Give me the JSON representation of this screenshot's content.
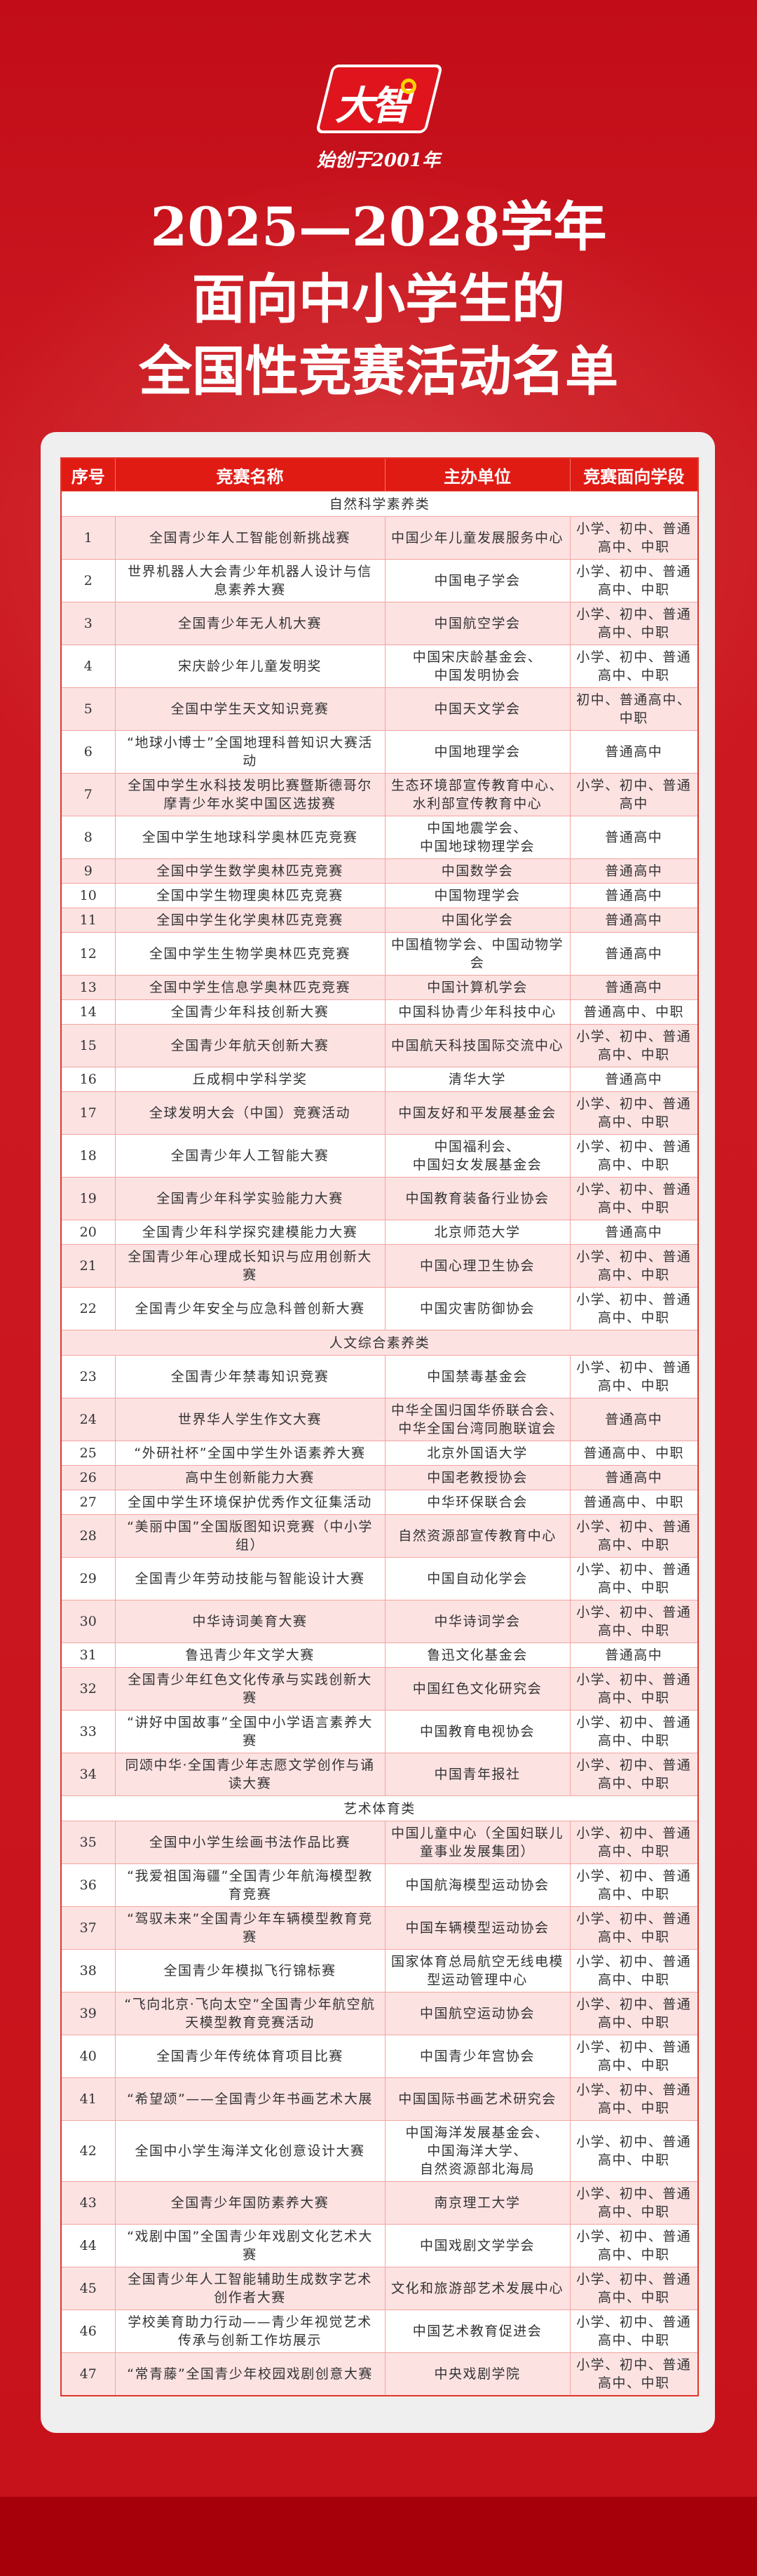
{
  "brand": {
    "logo_text": "大智",
    "slogan": "始创于2001年"
  },
  "title": {
    "line1": "2025—2028学年",
    "line2": "面向中小学生的",
    "line3": "全国性竞赛活动名单"
  },
  "colors": {
    "header": "#e01b14",
    "stripe": "#fde2e2",
    "background": "#c8121b"
  },
  "table": {
    "headers": [
      "序号",
      "竞赛名称",
      "主办单位",
      "竞赛面向学段"
    ],
    "sections": [
      {
        "name": "自然科学素养类",
        "rows": [
          [
            "1",
            "全国青少年人工智能创新挑战赛",
            "中国少年儿童发展服务中心",
            "小学、初中、普通高中、中职"
          ],
          [
            "2",
            "世界机器人大会青少年机器人设计与信息素养大赛",
            "中国电子学会",
            "小学、初中、普通高中、中职"
          ],
          [
            "3",
            "全国青少年无人机大赛",
            "中国航空学会",
            "小学、初中、普通高中、中职"
          ],
          [
            "4",
            "宋庆龄少年儿童发明奖",
            "中国宋庆龄基金会、\n中国发明协会",
            "小学、初中、普通高中、中职"
          ],
          [
            "5",
            "全国中学生天文知识竞赛",
            "中国天文学会",
            "初中、普通高中、中职"
          ],
          [
            "6",
            "“地球小博士”全国地理科普知识大赛活动",
            "中国地理学会",
            "普通高中"
          ],
          [
            "7",
            "全国中学生水科技发明比赛暨斯德哥尔摩青少年水奖中国区选拔赛",
            "生态环境部宣传教育中心、水利部宣传教育中心",
            "小学、初中、普通高中"
          ],
          [
            "8",
            "全国中学生地球科学奥林匹克竞赛",
            "中国地震学会、\n中国地球物理学会",
            "普通高中"
          ],
          [
            "9",
            "全国中学生数学奥林匹克竞赛",
            "中国数学会",
            "普通高中"
          ],
          [
            "10",
            "全国中学生物理奥林匹克竞赛",
            "中国物理学会",
            "普通高中"
          ],
          [
            "11",
            "全国中学生化学奥林匹克竞赛",
            "中国化学会",
            "普通高中"
          ],
          [
            "12",
            "全国中学生生物学奥林匹克竞赛",
            "中国植物学会、中国动物学会",
            "普通高中"
          ],
          [
            "13",
            "全国中学生信息学奥林匹克竞赛",
            "中国计算机学会",
            "普通高中"
          ],
          [
            "14",
            "全国青少年科技创新大赛",
            "中国科协青少年科技中心",
            "普通高中、中职"
          ],
          [
            "15",
            "全国青少年航天创新大赛",
            "中国航天科技国际交流中心",
            "小学、初中、普通高中、中职"
          ],
          [
            "16",
            "丘成桐中学科学奖",
            "清华大学",
            "普通高中"
          ],
          [
            "17",
            "全球发明大会（中国）竞赛活动",
            "中国友好和平发展基金会",
            "小学、初中、普通高中、中职"
          ],
          [
            "18",
            "全国青少年人工智能大赛",
            "中国福利会、\n中国妇女发展基金会",
            "小学、初中、普通高中、中职"
          ],
          [
            "19",
            "全国青少年科学实验能力大赛",
            "中国教育装备行业协会",
            "小学、初中、普通高中、中职"
          ],
          [
            "20",
            "全国青少年科学探究建模能力大赛",
            "北京师范大学",
            "普通高中"
          ],
          [
            "21",
            "全国青少年心理成长知识与应用创新大赛",
            "中国心理卫生协会",
            "小学、初中、普通高中、中职"
          ],
          [
            "22",
            "全国青少年安全与应急科普创新大赛",
            "中国灾害防御协会",
            "小学、初中、普通高中、中职"
          ]
        ]
      },
      {
        "name": "人文综合素养类",
        "rows": [
          [
            "23",
            "全国青少年禁毒知识竞赛",
            "中国禁毒基金会",
            "小学、初中、普通高中、中职"
          ],
          [
            "24",
            "世界华人学生作文大赛",
            "中华全国归国华侨联合会、\n中华全国台湾同胞联谊会",
            "普通高中"
          ],
          [
            "25",
            "“外研社杯”全国中学生外语素养大赛",
            "北京外国语大学",
            "普通高中、中职"
          ],
          [
            "26",
            "高中生创新能力大赛",
            "中国老教授协会",
            "普通高中"
          ],
          [
            "27",
            "全国中学生环境保护优秀作文征集活动",
            "中华环保联合会",
            "普通高中、中职"
          ],
          [
            "28",
            "“美丽中国”全国版图知识竞赛（中小学组）",
            "自然资源部宣传教育中心",
            "小学、初中、普通高中、中职"
          ],
          [
            "29",
            "全国青少年劳动技能与智能设计大赛",
            "中国自动化学会",
            "小学、初中、普通高中、中职"
          ],
          [
            "30",
            "中华诗词美育大赛",
            "中华诗词学会",
            "小学、初中、普通高中、中职"
          ],
          [
            "31",
            "鲁迅青少年文学大赛",
            "鲁迅文化基金会",
            "普通高中"
          ],
          [
            "32",
            "全国青少年红色文化传承与实践创新大赛",
            "中国红色文化研究会",
            "小学、初中、普通高中、中职"
          ],
          [
            "33",
            "“讲好中国故事”全国中小学语言素养大赛",
            "中国教育电视协会",
            "小学、初中、普通高中、中职"
          ],
          [
            "34",
            "同颂中华·全国青少年志愿文学创作与诵读大赛",
            "中国青年报社",
            "小学、初中、普通高中、中职"
          ]
        ]
      },
      {
        "name": "艺术体育类",
        "rows": [
          [
            "35",
            "全国中小学生绘画书法作品比赛",
            "中国儿童中心（全国妇联儿童事业发展集团）",
            "小学、初中、普通高中、中职"
          ],
          [
            "36",
            "“我爱祖国海疆”全国青少年航海模型教育竞赛",
            "中国航海模型运动协会",
            "小学、初中、普通高中、中职"
          ],
          [
            "37",
            "“驾驭未来”全国青少年车辆模型教育竞赛",
            "中国车辆模型运动协会",
            "小学、初中、普通高中、中职"
          ],
          [
            "38",
            "全国青少年模拟飞行锦标赛",
            "国家体育总局航空无线电模型运动管理中心",
            "小学、初中、普通高中、中职"
          ],
          [
            "39",
            "“飞向北京·飞向太空”全国青少年航空航天模型教育竞赛活动",
            "中国航空运动协会",
            "小学、初中、普通高中、中职"
          ],
          [
            "40",
            "全国青少年传统体育项目比赛",
            "中国青少年宫协会",
            "小学、初中、普通高中、中职"
          ],
          [
            "41",
            "“希望颂”——全国青少年书画艺术大展",
            "中国国际书画艺术研究会",
            "小学、初中、普通高中、中职"
          ],
          [
            "42",
            "全国中小学生海洋文化创意设计大赛",
            "中国海洋发展基金会、\n中国海洋大学、\n自然资源部北海局",
            "小学、初中、普通高中、中职"
          ],
          [
            "43",
            "全国青少年国防素养大赛",
            "南京理工大学",
            "小学、初中、普通高中、中职"
          ],
          [
            "44",
            "“戏剧中国”全国青少年戏剧文化艺术大赛",
            "中国戏剧文学学会",
            "小学、初中、普通高中、中职"
          ],
          [
            "45",
            "全国青少年人工智能辅助生成数字艺术创作者大赛",
            "文化和旅游部艺术发展中心",
            "小学、初中、普通高中、中职"
          ],
          [
            "46",
            "学校美育助力行动——青少年视觉艺术传承与创新工作坊展示",
            "中国艺术教育促进会",
            "小学、初中、普通高中、中职"
          ],
          [
            "47",
            "“常青藤”全国青少年校园戏剧创意大赛",
            "中央戏剧学院",
            "小学、初中、普通高中、中职"
          ]
        ]
      }
    ]
  }
}
